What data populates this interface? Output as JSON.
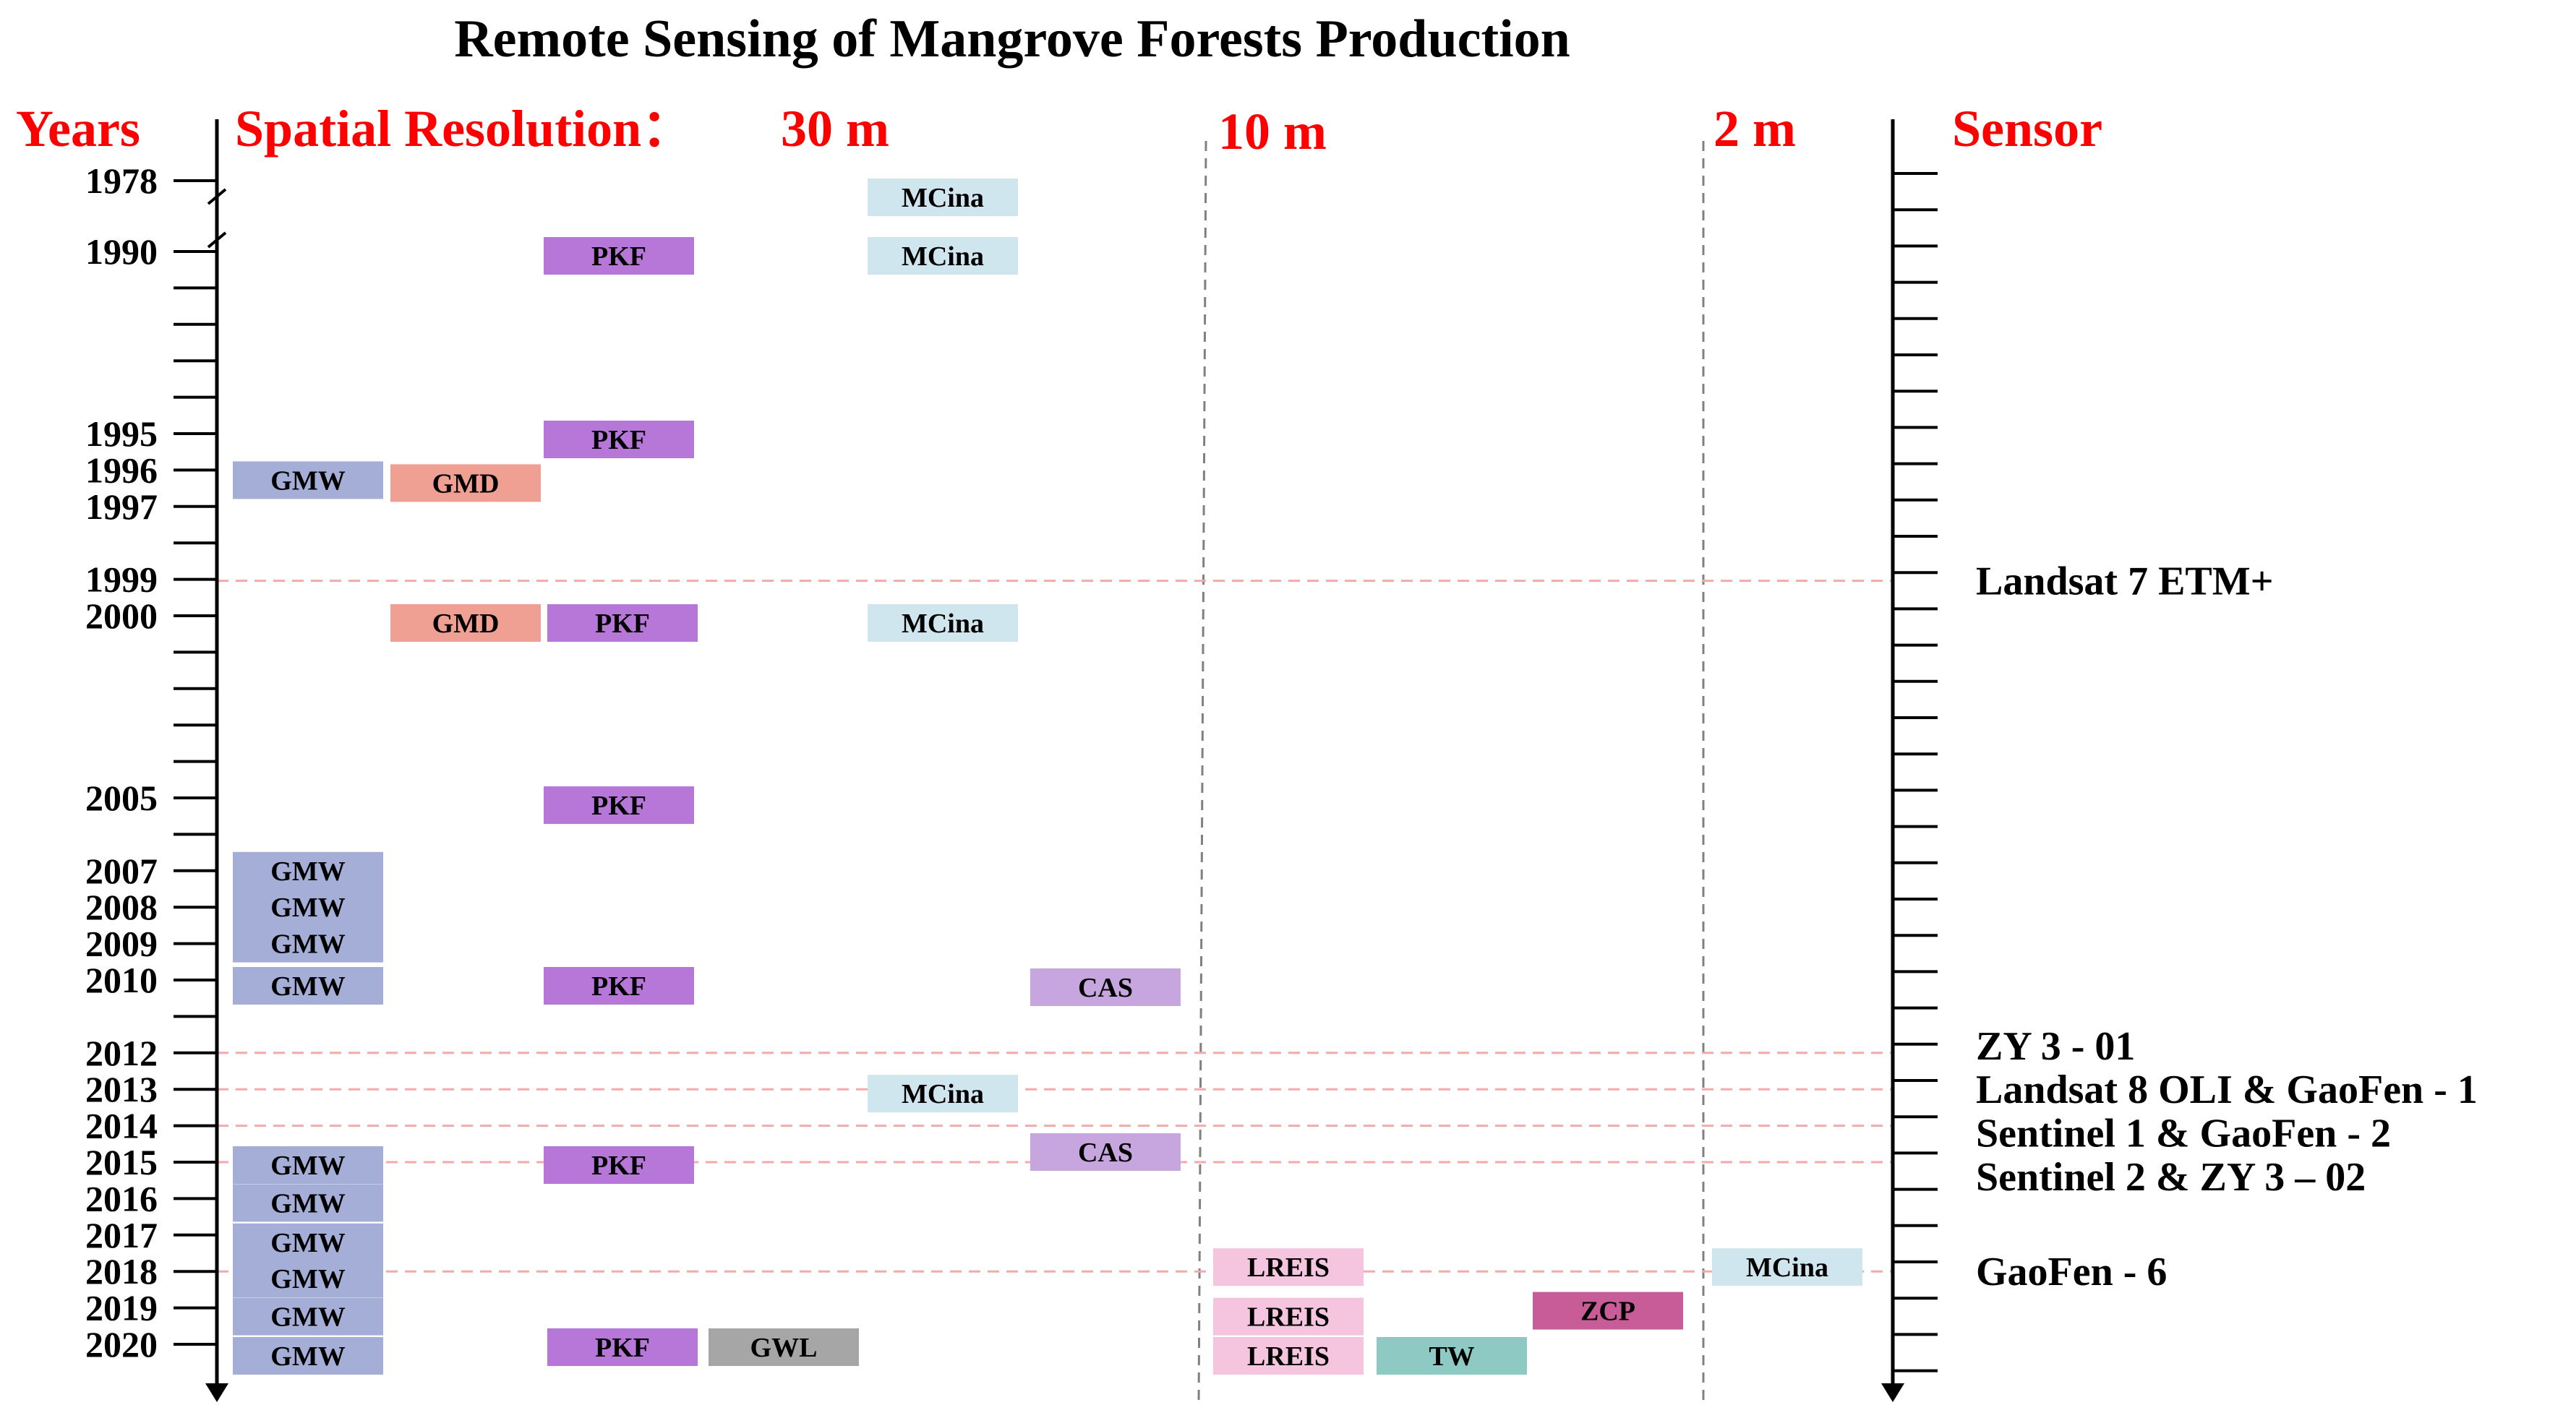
{
  "title": "Remote Sensing of Mangrove Forests Production",
  "headers": {
    "years": "Years",
    "spatial_resolution": "Spatial Resolution：",
    "res_30m": "30 m",
    "res_10m": "10 m",
    "res_2m": "2 m",
    "sensor": "Sensor"
  },
  "year_labels": [
    "1978",
    "1990",
    "1995",
    "1996",
    "1997",
    "1999",
    "2000",
    "2005",
    "2007",
    "2008",
    "2009",
    "2010",
    "2012",
    "2013",
    "2014",
    "2015",
    "2016",
    "2017",
    "2018",
    "2019",
    "2020"
  ],
  "sensors": [
    {
      "year": 1999,
      "label": "Landsat 7 ETM+"
    },
    {
      "year": 2012,
      "label": "ZY 3 - 01"
    },
    {
      "year": 2013,
      "label": "Landsat 8 OLI & GaoFen - 1"
    },
    {
      "year": 2014,
      "label": "Sentinel 1 & GaoFen - 2"
    },
    {
      "year": 2015,
      "label": "Sentinel 2 & ZY 3 – 02"
    },
    {
      "year": 2018,
      "label": "GaoFen - 6"
    }
  ],
  "datasets": [
    {
      "label": "MCina",
      "year": 1978,
      "resolution": "30 m",
      "color": "#cfe6ef"
    },
    {
      "label": "PKF",
      "year": 1990,
      "resolution": "30 m",
      "color": "#b677d9"
    },
    {
      "label": "MCina",
      "year": 1990,
      "resolution": "30 m",
      "color": "#cfe6ef"
    },
    {
      "label": "PKF",
      "year": 1995,
      "resolution": "30 m",
      "color": "#b677d9"
    },
    {
      "label": "GMW",
      "year": 1996,
      "resolution": "30 m",
      "color": "#a4aed7"
    },
    {
      "label": "GMD",
      "year": 1996,
      "resolution": "30 m",
      "color": "#f0a093"
    },
    {
      "label": "GMD",
      "year": 2000,
      "resolution": "30 m",
      "color": "#f0a093"
    },
    {
      "label": "PKF",
      "year": 2000,
      "resolution": "30 m",
      "color": "#b677d9"
    },
    {
      "label": "MCina",
      "year": 2000,
      "resolution": "30 m",
      "color": "#cfe6ef"
    },
    {
      "label": "PKF",
      "year": 2005,
      "resolution": "30 m",
      "color": "#b677d9"
    },
    {
      "label": "GMW",
      "year": 2007,
      "resolution": "30 m",
      "color": "#a4aed7"
    },
    {
      "label": "GMW",
      "year": 2008,
      "resolution": "30 m",
      "color": "#a4aed7"
    },
    {
      "label": "GMW",
      "year": 2009,
      "resolution": "30 m",
      "color": "#a4aed7"
    },
    {
      "label": "GMW",
      "year": 2010,
      "resolution": "30 m",
      "color": "#a4aed7"
    },
    {
      "label": "PKF",
      "year": 2010,
      "resolution": "30 m",
      "color": "#b677d9"
    },
    {
      "label": "CAS",
      "year": 2010,
      "resolution": "30 m",
      "color": "#c7a6e0"
    },
    {
      "label": "MCina",
      "year": 2013,
      "resolution": "30 m",
      "color": "#cfe6ef"
    },
    {
      "label": "GMW",
      "year": 2015,
      "resolution": "30 m",
      "color": "#a4aed7"
    },
    {
      "label": "PKF",
      "year": 2015,
      "resolution": "30 m",
      "color": "#b677d9"
    },
    {
      "label": "CAS",
      "year": 2015,
      "resolution": "30 m",
      "color": "#c7a6e0"
    },
    {
      "label": "GMW",
      "year": 2016,
      "resolution": "30 m",
      "color": "#a4aed7"
    },
    {
      "label": "GMW",
      "year": 2017,
      "resolution": "30 m",
      "color": "#a4aed7"
    },
    {
      "label": "GMW",
      "year": 2018,
      "resolution": "30 m",
      "color": "#a4aed7"
    },
    {
      "label": "LREIS",
      "year": 2018,
      "resolution": "10 m",
      "color": "#f5c5e0"
    },
    {
      "label": "MCina",
      "year": 2018,
      "resolution": "2 m",
      "color": "#cfe6ef"
    },
    {
      "label": "GMW",
      "year": 2019,
      "resolution": "30 m",
      "color": "#a4aed7"
    },
    {
      "label": "LREIS",
      "year": 2019,
      "resolution": "10 m",
      "color": "#f5c5e0"
    },
    {
      "label": "ZCP",
      "year": 2019,
      "resolution": "10 m",
      "color": "#c85c98"
    },
    {
      "label": "GMW",
      "year": 2020,
      "resolution": "30 m",
      "color": "#a4aed7"
    },
    {
      "label": "PKF",
      "year": 2020,
      "resolution": "30 m",
      "color": "#b677d9"
    },
    {
      "label": "GWL",
      "year": 2020,
      "resolution": "30 m",
      "color": "#a6a6a6"
    },
    {
      "label": "LREIS",
      "year": 2020,
      "resolution": "10 m",
      "color": "#f5c5e0"
    },
    {
      "label": "TW",
      "year": 2020,
      "resolution": "10 m",
      "color": "#8fc9c3"
    }
  ],
  "colors": {
    "header_red": "#ff0000",
    "dashed_pink": "#f4aaaa",
    "divider_gray": "#808080",
    "axis_black": "#000000"
  }
}
